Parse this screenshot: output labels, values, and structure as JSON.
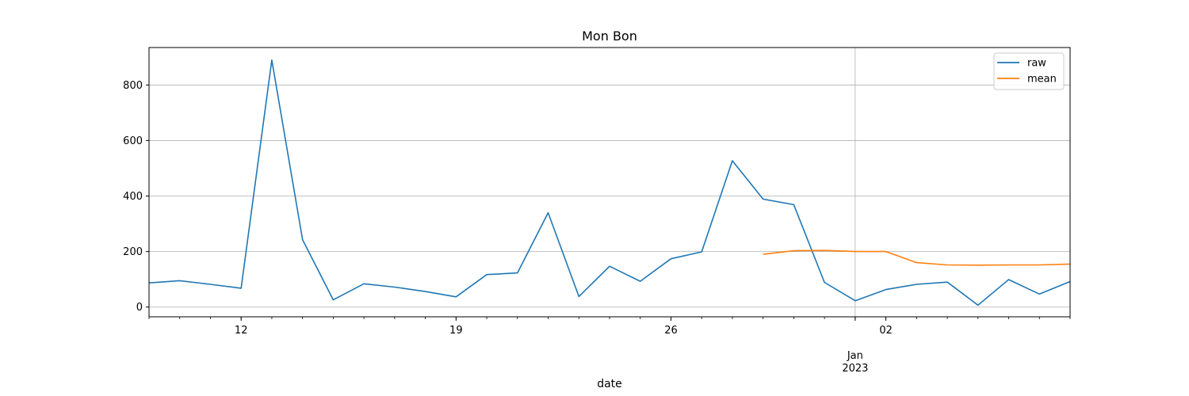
{
  "chart_data": {
    "type": "line",
    "title": "Mon Bon",
    "xlabel": "date",
    "ylabel": "",
    "x": [
      "2022-12-09",
      "2022-12-10",
      "2022-12-11",
      "2022-12-12",
      "2022-12-13",
      "2022-12-14",
      "2022-12-15",
      "2022-12-16",
      "2022-12-17",
      "2022-12-18",
      "2022-12-19",
      "2022-12-20",
      "2022-12-21",
      "2022-12-22",
      "2022-12-23",
      "2022-12-24",
      "2022-12-25",
      "2022-12-26",
      "2022-12-27",
      "2022-12-28",
      "2022-12-29",
      "2022-12-30",
      "2022-12-31",
      "2023-01-01",
      "2023-01-02",
      "2023-01-03",
      "2023-01-04",
      "2023-01-05",
      "2023-01-06",
      "2023-01-07",
      "2023-01-08"
    ],
    "xlim": [
      "2022-12-09",
      "2023-01-08"
    ],
    "ylim": [
      -35,
      935
    ],
    "grid": true,
    "legend_position": "upper-right",
    "x_major_ticks": [
      {
        "date": "2022-12-12",
        "label": "12"
      },
      {
        "date": "2022-12-19",
        "label": "19"
      },
      {
        "date": "2022-12-26",
        "label": "26"
      },
      {
        "date": "2023-01-01",
        "label": "Jan",
        "sublabel": "2023"
      },
      {
        "date": "2023-01-02",
        "label": "02"
      }
    ],
    "y_ticks": [
      0,
      200,
      400,
      600,
      800
    ],
    "series": [
      {
        "name": "raw",
        "color": "#1f77b4",
        "values": [
          87,
          95,
          82,
          68,
          890,
          243,
          26,
          84,
          72,
          56,
          37,
          117,
          123,
          340,
          38,
          147,
          93,
          174,
          199,
          527,
          389,
          369,
          89,
          23,
          63,
          82,
          90,
          7,
          99,
          47,
          92
        ]
      },
      {
        "name": "mean",
        "color": "#ff7f0e",
        "values": [
          null,
          null,
          null,
          null,
          null,
          null,
          null,
          null,
          null,
          null,
          null,
          null,
          null,
          null,
          null,
          null,
          null,
          null,
          null,
          null,
          190,
          203,
          204,
          200,
          200,
          160,
          152,
          151,
          152,
          152,
          155
        ]
      }
    ]
  }
}
